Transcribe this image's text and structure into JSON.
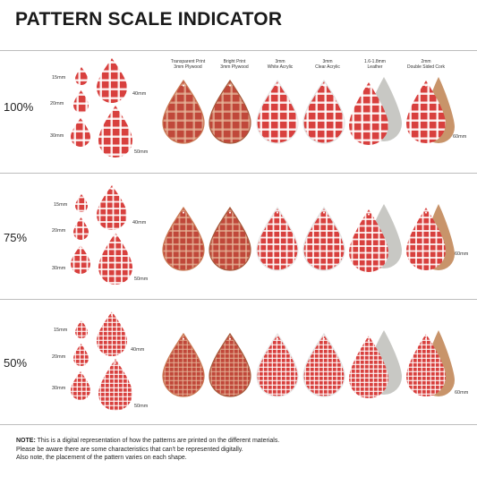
{
  "title": "PATTERN SCALE INDICATOR",
  "materials": [
    "Transparent Print\n3mm Plywood",
    "Bright Print\n3mm Plywood",
    "3mm\nWhite Acrylic",
    "3mm\nClear Acrylic",
    "1.6-1.8mm\nLeather",
    "2mm\nDouble Sided Cork"
  ],
  "sizes": {
    "s15": "15mm",
    "s20": "20mm",
    "s30": "30mm",
    "s40": "40mm",
    "s50": "50mm",
    "s60": "60mm"
  },
  "scales": [
    "100%",
    "75%",
    "50%"
  ],
  "note": {
    "label": "NOTE:",
    "line1": " This is a digital representation of how the patterns are printed on the different materials.",
    "line2": "Please be aware there are some characteristics that can't be represented digitally.",
    "line3": "Also note, the placement of the pattern varies on each shape."
  },
  "colors": {
    "gingham": "#d8403e",
    "white": "#ffffff",
    "ply": "#c97a55",
    "leather": "#c8c8c4",
    "cork": "#c8946a"
  }
}
